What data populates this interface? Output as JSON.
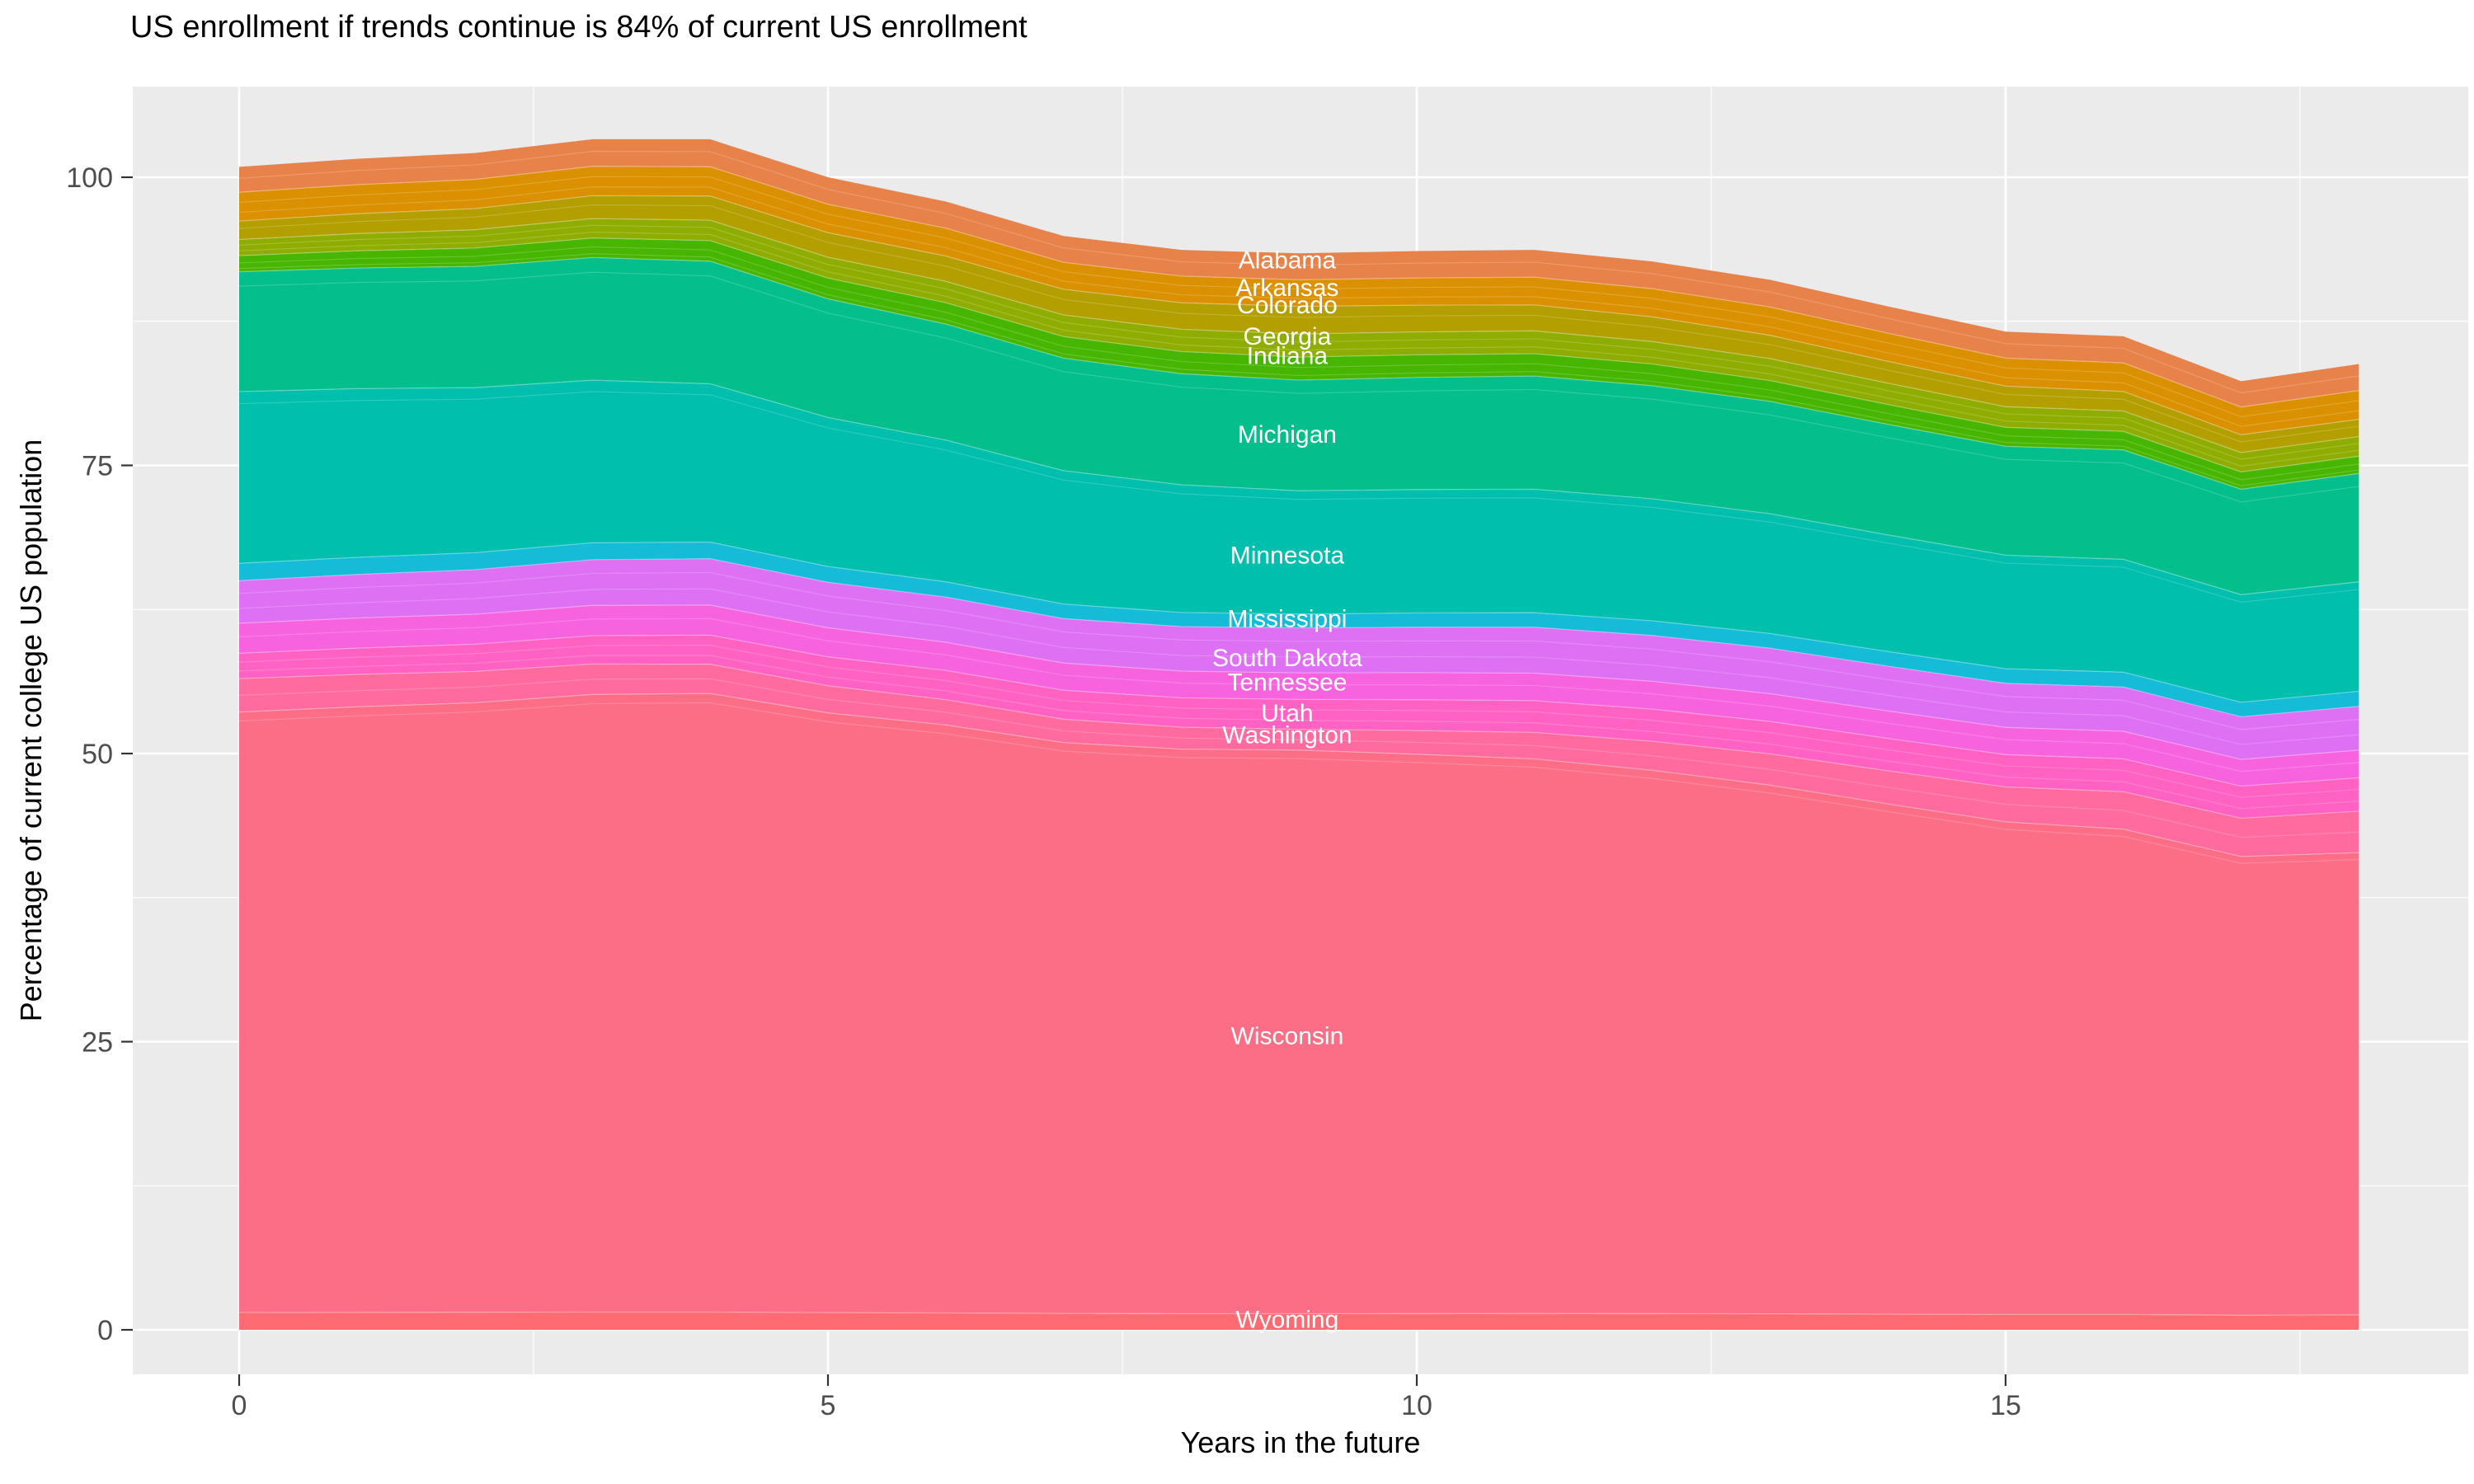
{
  "chart_data": {
    "type": "area",
    "stacked": true,
    "title": "US enrollment if trends continue is 84% of current US enrollment",
    "xlabel": "Years in the future",
    "ylabel": "Percentage of current college US population",
    "legend": "none",
    "panel_background": "#EBEBEB",
    "gridline_color": "#FFFFFF",
    "axis_text_color": "#4D4D4D",
    "title_color": "#000000",
    "band_label_color": "#FFFFFF",
    "x_range": [
      0,
      18
    ],
    "ylim": [
      0,
      103.3
    ],
    "x_ticks": [
      0,
      5,
      10,
      15
    ],
    "x_minor_ticks": [
      2.5,
      7.5,
      12.5,
      17.5
    ],
    "y_ticks": [
      0,
      25,
      50,
      75,
      100
    ],
    "y_minor_ticks": [
      12.5,
      37.5,
      62.5,
      87.5
    ],
    "x": [
      0,
      1,
      2,
      3,
      4,
      5,
      6,
      7,
      8,
      9,
      10,
      11,
      12,
      13,
      14,
      15,
      16,
      17,
      18
    ],
    "total_top": [
      100.9,
      101.6,
      102.1,
      103.3,
      103.3,
      100.0,
      97.9,
      94.9,
      93.7,
      93.4,
      93.6,
      93.7,
      92.7,
      91.1,
      88.8,
      86.6,
      86.2,
      82.3,
      83.8
    ],
    "anchors_x": [
      0,
      9,
      18
    ],
    "series": [
      {
        "name": "Alabama",
        "color": "#E8824B",
        "cum_top_at_anchors": [
          100.9,
          93.4,
          83.8
        ],
        "label": {
          "x": 8.9,
          "y": 92.8
        }
      },
      {
        "name": "Arkansas",
        "color": "#DB9000",
        "cum_top_at_anchors": [
          98.7,
          91.1,
          81.5
        ],
        "label": {
          "x": 8.9,
          "y": 90.4
        }
      },
      {
        "name": "Colorado",
        "color": "#B3A000",
        "cum_top_at_anchors": [
          96.2,
          88.8,
          79.0
        ],
        "label": {
          "x": 8.9,
          "y": 88.9
        }
      },
      {
        "name": "Georgia",
        "color": "#8FAD00",
        "cum_top_at_anchors": [
          94.6,
          86.4,
          77.5
        ],
        "label": {
          "x": 8.9,
          "y": 86.2
        }
      },
      {
        "name": "Indiana",
        "color": "#46B600",
        "cum_top_at_anchors": [
          93.2,
          84.4,
          75.8
        ],
        "label": {
          "x": 8.9,
          "y": 84.5
        }
      },
      {
        "name": "Michigan",
        "color": "#04BE8C",
        "cum_top_at_anchors": [
          91.8,
          82.4,
          74.3
        ],
        "label": {
          "x": 8.9,
          "y": 77.7
        }
      },
      {
        "name": "Minnesota",
        "color": "#00BFAD",
        "cum_top_at_anchors": [
          81.4,
          72.8,
          64.9
        ],
        "label": {
          "x": 8.9,
          "y": 67.2
        }
      },
      {
        "name": "Mississippi",
        "color": "#14BCD8",
        "cum_top_at_anchors": [
          66.5,
          62.1,
          55.4
        ],
        "label": {
          "x": 8.9,
          "y": 61.7
        }
      },
      {
        "name": "South Dakota",
        "color": "#DE70F4",
        "cum_top_at_anchors": [
          65.0,
          60.9,
          54.1
        ],
        "label": {
          "x": 8.9,
          "y": 58.3
        }
      },
      {
        "name": "Tennessee",
        "color": "#F763DF",
        "cum_top_at_anchors": [
          61.3,
          57.0,
          50.3
        ],
        "label": {
          "x": 8.9,
          "y": 56.2
        }
      },
      {
        "name": "Utah",
        "color": "#FF62C2",
        "cum_top_at_anchors": [
          58.7,
          54.7,
          47.9
        ],
        "label": {
          "x": 8.9,
          "y": 53.5
        }
      },
      {
        "name": "Washington",
        "color": "#FF6B9E",
        "cum_top_at_anchors": [
          56.5,
          52.1,
          45.0
        ],
        "label": {
          "x": 8.9,
          "y": 51.6
        }
      },
      {
        "name": "Wisconsin",
        "color": "#FC6E85",
        "cum_top_at_anchors": [
          53.6,
          50.3,
          41.4
        ],
        "label": {
          "x": 8.9,
          "y": 25.5
        }
      },
      {
        "name": "Wyoming",
        "color": "#FF6B72",
        "cum_top_at_anchors": [
          1.5,
          1.4,
          1.3
        ],
        "label": {
          "x": 8.9,
          "y": 0.9
        }
      }
    ],
    "render_hints": {
      "sublines": {
        "Alabama": [
          0.45
        ],
        "Arkansas": [
          0.35,
          0.7
        ],
        "Colorado": [
          0.4
        ],
        "Georgia": [
          0.35,
          0.7
        ],
        "Indiana": [
          0.45,
          0.8
        ],
        "Michigan": [
          0.12
        ],
        "Minnesota": [
          0.07
        ],
        "South Dakota": [
          0.3,
          0.65
        ],
        "Tennessee": [
          0.45
        ],
        "Utah": [
          0.35,
          0.7
        ],
        "Washington": [
          0.5
        ],
        "Wisconsin": [
          0.015
        ]
      }
    }
  }
}
